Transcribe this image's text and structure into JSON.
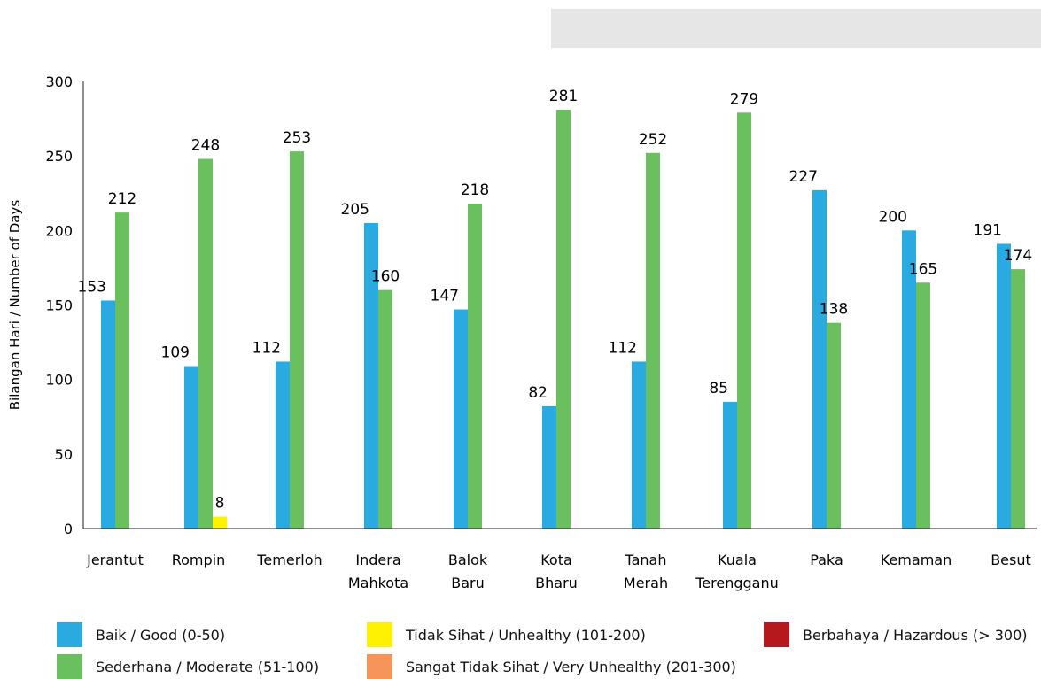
{
  "chart_data": {
    "type": "bar",
    "title": "",
    "xlabel": "",
    "ylabel": "Bilangan Hari / Number of Days",
    "ylim": [
      0,
      300
    ],
    "yticks": [
      0,
      50,
      100,
      150,
      200,
      250,
      300
    ],
    "grid": false,
    "legend_position": "bottom",
    "categories": [
      [
        "Jerantut"
      ],
      [
        "Rompin"
      ],
      [
        "Temerloh"
      ],
      [
        "Indera",
        "Mahkota"
      ],
      [
        "Balok",
        "Baru"
      ],
      [
        "Kota",
        "Bharu"
      ],
      [
        "Tanah",
        "Merah"
      ],
      [
        "Kuala",
        "Terengganu"
      ],
      [
        "Paka"
      ],
      [
        "Kemaman"
      ],
      [
        "Besut"
      ]
    ],
    "series": [
      {
        "name": "Baik / Good (0-50)",
        "color": "#29abe2",
        "values": [
          153,
          109,
          112,
          205,
          147,
          82,
          112,
          85,
          227,
          200,
          191
        ]
      },
      {
        "name": "Sederhana / Moderate (51-100)",
        "color": "#6abf5e",
        "values": [
          212,
          248,
          253,
          160,
          218,
          281,
          252,
          279,
          138,
          165,
          174
        ]
      },
      {
        "name": "Tidak Sihat / Unhealthy (101-200)",
        "color": "#fff200",
        "values": [
          0,
          8,
          0,
          0,
          0,
          0,
          0,
          0,
          0,
          0,
          0
        ]
      },
      {
        "name": "Sangat Tidak Sihat / Very Unhealthy (201-300)",
        "color": "#f7945a",
        "values": [
          0,
          0,
          0,
          0,
          0,
          0,
          0,
          0,
          0,
          0,
          0
        ]
      },
      {
        "name": "Berbahaya / Hazardous (> 300)",
        "color": "#b5191e",
        "values": [
          0,
          0,
          0,
          0,
          0,
          0,
          0,
          0,
          0,
          0,
          0
        ]
      }
    ],
    "data_labels": [
      [
        "153",
        "212"
      ],
      [
        "109",
        "248",
        "8"
      ],
      [
        "112",
        "253"
      ],
      [
        "205",
        "160"
      ],
      [
        "147",
        "218"
      ],
      [
        "82",
        "281"
      ],
      [
        "112",
        "252"
      ],
      [
        "85",
        "279"
      ],
      [
        "227",
        "138"
      ],
      [
        "200",
        "165"
      ],
      [
        "191",
        "174"
      ]
    ]
  }
}
